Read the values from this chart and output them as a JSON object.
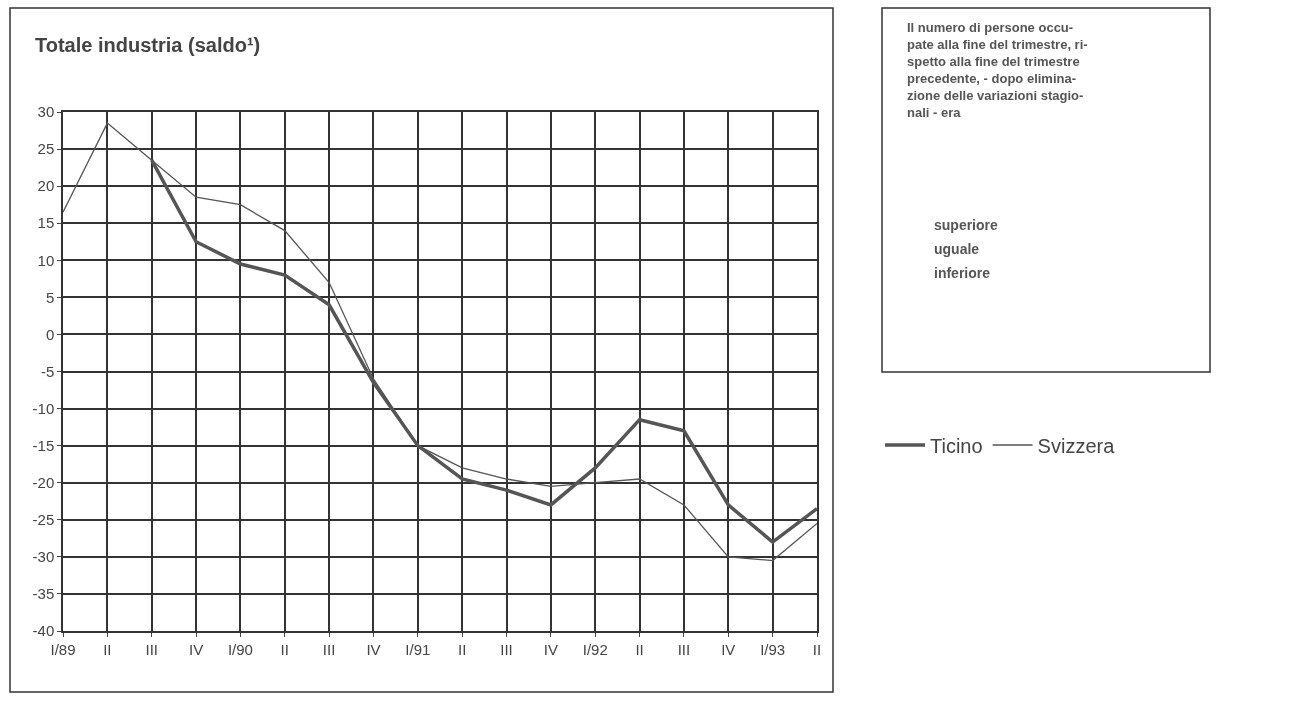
{
  "chart_data": {
    "type": "line",
    "title": "Totale industria (saldo¹)",
    "categories": [
      "I/89",
      "II",
      "III",
      "IV",
      "I/90",
      "II",
      "III",
      "IV",
      "I/91",
      "II",
      "III",
      "IV",
      "I/92",
      "II",
      "III",
      "IV",
      "I/93",
      "II"
    ],
    "series": [
      {
        "name": "Ticino",
        "color": "#555555",
        "values": [
          null,
          null,
          23.5,
          12.5,
          9.5,
          8,
          4,
          -6.5,
          -15,
          -19.5,
          -21,
          -23,
          -18,
          -11.5,
          -13,
          -23,
          -28,
          -23.5
        ]
      },
      {
        "name": "Svizzera",
        "color": "#555555",
        "values": [
          16.5,
          28.5,
          23.5,
          18.5,
          17.5,
          14,
          7,
          -6,
          -15,
          -18,
          -19.5,
          -20.5,
          -20,
          -19.5,
          -23,
          -30,
          -30.5,
          -25.5
        ]
      }
    ],
    "ylim": [
      -40,
      30
    ],
    "yticks": [
      -40,
      -35,
      -30,
      -25,
      -20,
      -15,
      -10,
      -5,
      0,
      5,
      10,
      15,
      20,
      25,
      30
    ],
    "grid": true,
    "legend": "right",
    "annotations": [
      "Il numero di persone occu-\npate alla fine del trimestre, ri-\nspetto alla fine del trimestre\nprecedente, - dopo elimina-\nzione delle variazioni stagio-\nnali - era",
      "superiore",
      "uguale",
      "inferiore"
    ]
  }
}
